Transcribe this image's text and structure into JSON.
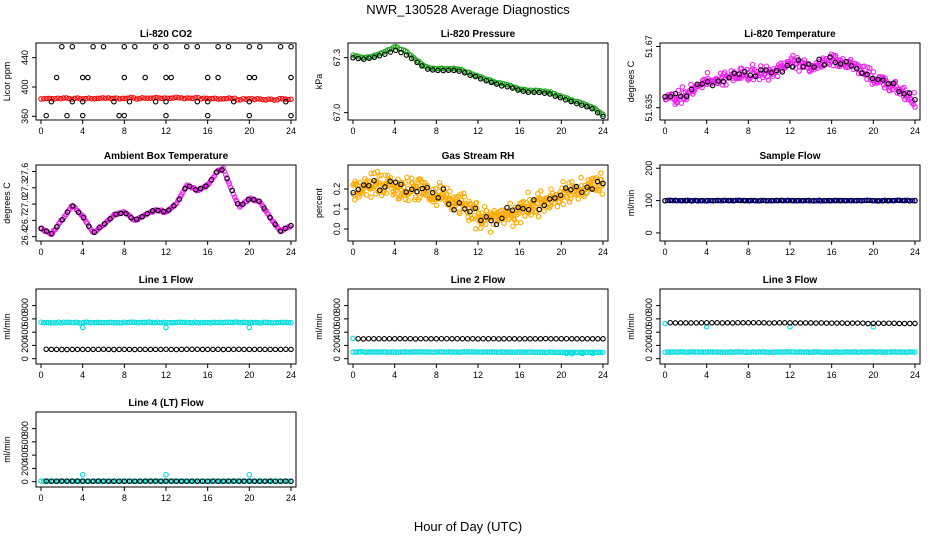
{
  "figure": {
    "title": "NWR_130528  Average Diagnostics",
    "xlabel": "Hour of Day (UTC)"
  },
  "chart_data": [
    {
      "id": "co2",
      "type": "scatter",
      "title": "Li-820 CO2",
      "ylabel": "Licor ppm",
      "xlim": [
        0,
        24
      ],
      "ylim": [
        355,
        460
      ],
      "xticks": [
        0,
        4,
        8,
        12,
        16,
        20,
        24
      ],
      "yticks": [
        360,
        400,
        440
      ],
      "series": [
        {
          "style": "band",
          "color": "#ff0000",
          "shape": "circle",
          "x_start": 0,
          "x_end": 24,
          "count": 90,
          "y_start": 384,
          "y_mid": 385,
          "y_end": 383,
          "jitter": 1.5
        },
        {
          "style": "scatter",
          "color": "#000000",
          "shape": "circle",
          "x": [
            2,
            3,
            5,
            6,
            8,
            9,
            11,
            12,
            14,
            15,
            17,
            18,
            20,
            21,
            23,
            24,
            1.5,
            4,
            4.5,
            8,
            10,
            12,
            12.5,
            16,
            17,
            20,
            20.5,
            24,
            1,
            3,
            4,
            7,
            8.5,
            11,
            12,
            15,
            16,
            18.5,
            20,
            23.5,
            0.5,
            2.5,
            4,
            7.5,
            8,
            12,
            16,
            20,
            24
          ],
          "y": [
            455,
            455,
            455,
            455,
            455,
            455,
            455,
            455,
            455,
            455,
            455,
            455,
            455,
            455,
            455,
            455,
            413,
            413,
            413,
            413,
            413,
            413,
            413,
            413,
            413,
            413,
            413,
            413,
            380,
            380,
            380,
            380,
            380,
            380,
            380,
            380,
            380,
            380,
            380,
            380,
            361,
            361,
            361,
            361,
            361,
            361,
            361,
            361,
            361
          ]
        }
      ]
    },
    {
      "id": "pressure",
      "type": "scatter",
      "title": "Li-820 Pressure",
      "ylabel": "kPa",
      "xlim": [
        0,
        24
      ],
      "ylim": [
        66.96,
        67.38
      ],
      "xticks": [
        0,
        4,
        8,
        12,
        16,
        20,
        24
      ],
      "yticks": [
        67.0,
        67.3
      ],
      "series": [
        {
          "style": "line-band",
          "color": "#22aa22",
          "shape": "circle",
          "count": 130,
          "jitter": 0.005,
          "path_x": [
            0,
            1,
            2,
            3,
            4,
            5,
            6,
            7,
            8,
            9,
            10,
            11,
            12,
            13,
            14,
            15,
            16,
            17,
            18,
            19,
            20,
            21,
            22,
            23,
            24
          ],
          "path_y": [
            67.31,
            67.3,
            67.31,
            67.33,
            67.36,
            67.34,
            67.29,
            67.25,
            67.24,
            67.24,
            67.24,
            67.22,
            67.2,
            67.18,
            67.16,
            67.15,
            67.13,
            67.12,
            67.12,
            67.11,
            67.09,
            67.07,
            67.05,
            67.03,
            66.99
          ]
        },
        {
          "style": "line-band",
          "color": "#000000",
          "shape": "circle",
          "count": 48,
          "jitter": 0.003,
          "path_x": [
            0,
            1,
            2,
            3,
            4,
            5,
            6,
            7,
            8,
            9,
            10,
            11,
            12,
            13,
            14,
            15,
            16,
            17,
            18,
            19,
            20,
            21,
            22,
            23,
            24
          ],
          "path_y": [
            67.3,
            67.29,
            67.3,
            67.32,
            67.34,
            67.32,
            67.28,
            67.24,
            67.23,
            67.23,
            67.23,
            67.21,
            67.19,
            67.17,
            67.15,
            67.14,
            67.12,
            67.11,
            67.11,
            67.1,
            67.08,
            67.06,
            67.04,
            67.02,
            66.98
          ]
        }
      ]
    },
    {
      "id": "licor-temp",
      "type": "scatter",
      "title": "Li-820 Temperature",
      "ylabel": "degrees C",
      "xlim": [
        0,
        24
      ],
      "ylim": [
        51.628,
        51.672
      ],
      "xticks": [
        0,
        4,
        8,
        12,
        16,
        20,
        24
      ],
      "yticks": [
        51.635,
        51.67
      ],
      "series": [
        {
          "style": "line-band",
          "color": "#ee22ee",
          "shape": "circle",
          "count": 320,
          "jitter": 0.006,
          "path_x": [
            0,
            2,
            4,
            6,
            8,
            10,
            12,
            14,
            16,
            18,
            20,
            22,
            24
          ],
          "path_y": [
            51.64,
            51.642,
            51.65,
            51.652,
            51.655,
            51.655,
            51.66,
            51.658,
            51.662,
            51.66,
            51.652,
            51.647,
            51.64
          ]
        },
        {
          "style": "line-band",
          "color": "#000000",
          "shape": "circle",
          "count": 48,
          "jitter": 0.004,
          "path_x": [
            0,
            2,
            4,
            6,
            8,
            10,
            12,
            14,
            16,
            18,
            20,
            22,
            24
          ],
          "path_y": [
            51.64,
            51.642,
            51.65,
            51.652,
            51.655,
            51.655,
            51.66,
            51.658,
            51.662,
            51.66,
            51.652,
            51.647,
            51.64
          ]
        }
      ]
    },
    {
      "id": "box-temp",
      "type": "scatter",
      "title": "Ambient Box Temperature",
      "ylabel": "degrees C",
      "xlim": [
        0,
        24
      ],
      "ylim": [
        26.32,
        27.72
      ],
      "xticks": [
        0,
        4,
        8,
        12,
        16,
        20,
        24
      ],
      "yticks": [
        26.4,
        26.7,
        27.0,
        27.3,
        27.6
      ],
      "series": [
        {
          "style": "line-band",
          "color": "#ee22ee",
          "shape": "circle",
          "count": 200,
          "jitter": 0.025,
          "path_x": [
            0,
            1,
            2,
            3,
            4,
            5,
            6,
            7,
            8,
            9,
            10,
            11,
            12,
            13,
            14,
            15,
            16,
            17,
            17.5,
            18,
            19,
            20,
            21,
            22,
            23,
            23.5,
            24
          ],
          "path_y": [
            26.55,
            26.45,
            26.7,
            26.98,
            26.78,
            26.47,
            26.62,
            26.8,
            26.85,
            26.7,
            26.8,
            26.9,
            26.85,
            27.0,
            27.35,
            27.25,
            27.35,
            27.62,
            27.65,
            27.4,
            26.95,
            27.1,
            27.05,
            26.75,
            26.5,
            26.55,
            26.6
          ]
        },
        {
          "style": "line-band",
          "color": "#000000",
          "shape": "circle",
          "count": 48,
          "jitter": 0.015,
          "path_x": [
            0,
            1,
            2,
            3,
            4,
            5,
            6,
            7,
            8,
            9,
            10,
            11,
            12,
            13,
            14,
            15,
            16,
            17,
            17.5,
            18,
            19,
            20,
            21,
            22,
            23,
            23.5,
            24
          ],
          "path_y": [
            26.55,
            26.45,
            26.7,
            26.98,
            26.78,
            26.47,
            26.62,
            26.8,
            26.85,
            26.7,
            26.8,
            26.9,
            26.85,
            27.0,
            27.35,
            27.25,
            27.35,
            27.62,
            27.65,
            27.4,
            26.95,
            27.1,
            27.05,
            26.75,
            26.5,
            26.55,
            26.6
          ]
        }
      ]
    },
    {
      "id": "gas-rh",
      "type": "scatter",
      "title": "Gas Stream RH",
      "ylabel": "percent",
      "xlim": [
        0,
        24
      ],
      "ylim": [
        -0.06,
        0.32
      ],
      "xticks": [
        0,
        4,
        8,
        12,
        16,
        20,
        24
      ],
      "yticks": [
        0.0,
        0.1,
        0.2
      ],
      "series": [
        {
          "style": "line-band",
          "color": "#ffaa00",
          "shape": "circle",
          "count": 420,
          "jitter": 0.09,
          "path_x": [
            0,
            2,
            4,
            6,
            8,
            10,
            12,
            13,
            14,
            16,
            18,
            20,
            22,
            24
          ],
          "path_y": [
            0.19,
            0.22,
            0.21,
            0.2,
            0.17,
            0.13,
            0.07,
            0.05,
            0.06,
            0.1,
            0.13,
            0.17,
            0.2,
            0.22
          ]
        },
        {
          "style": "line-band",
          "color": "#000000",
          "shape": "circle",
          "count": 48,
          "jitter": 0.05,
          "path_x": [
            0,
            2,
            4,
            6,
            8,
            10,
            12,
            13,
            14,
            16,
            18,
            20,
            22,
            24
          ],
          "path_y": [
            0.19,
            0.22,
            0.21,
            0.2,
            0.17,
            0.13,
            0.07,
            0.05,
            0.06,
            0.1,
            0.13,
            0.17,
            0.2,
            0.22
          ]
        }
      ]
    },
    {
      "id": "sample-flow",
      "type": "scatter",
      "title": "Sample Flow",
      "ylabel": "ml/min",
      "xlim": [
        0,
        24
      ],
      "ylim": [
        -25,
        210
      ],
      "xticks": [
        0,
        4,
        8,
        12,
        16,
        20,
        24
      ],
      "yticks": [
        0,
        100,
        200
      ],
      "series": [
        {
          "style": "band",
          "color": "#0000cc",
          "shape": "circle",
          "x_start": 0,
          "x_end": 24,
          "count": 100,
          "y_start": 100,
          "y_mid": 100,
          "y_end": 100,
          "jitter": 1.5
        },
        {
          "style": "band",
          "color": "#000000",
          "shape": "circle",
          "x_start": 0,
          "x_end": 24,
          "count": 48,
          "y_start": 100,
          "y_mid": 100,
          "y_end": 100,
          "jitter": 1.5
        }
      ]
    },
    {
      "id": "line1",
      "type": "scatter",
      "title": "Line 1 Flow",
      "ylabel": "ml/min",
      "xlim": [
        0,
        24
      ],
      "ylim": [
        -80,
        1050
      ],
      "xticks": [
        0,
        4,
        8,
        12,
        16,
        20,
        24
      ],
      "yticks": [
        0,
        200,
        400,
        600,
        800
      ],
      "series": [
        {
          "style": "band",
          "color": "#00dddd",
          "shape": "circle",
          "x_start": 0,
          "x_end": 24,
          "count": 100,
          "y_start": 545,
          "y_mid": 545,
          "y_end": 545,
          "jitter": 10
        },
        {
          "style": "scatter",
          "color": "#00dddd",
          "shape": "circle",
          "x": [
            4,
            12,
            20
          ],
          "y": [
            470,
            470,
            470
          ]
        },
        {
          "style": "band",
          "color": "#000000",
          "shape": "circle",
          "x_start": 0.5,
          "x_end": 24,
          "count": 48,
          "y_start": 140,
          "y_mid": 140,
          "y_end": 140,
          "jitter": 2
        }
      ]
    },
    {
      "id": "line2",
      "type": "scatter",
      "title": "Line 2 Flow",
      "ylabel": "ml/min",
      "xlim": [
        0,
        24
      ],
      "ylim": [
        -80,
        1050
      ],
      "xticks": [
        0,
        4,
        8,
        12,
        16,
        20,
        24
      ],
      "yticks": [
        0,
        200,
        400,
        600,
        800
      ],
      "series": [
        {
          "style": "band",
          "color": "#00dddd",
          "shape": "circle",
          "x_start": 0,
          "x_end": 24,
          "count": 100,
          "y_start": 100,
          "y_mid": 100,
          "y_end": 95,
          "jitter": 5
        },
        {
          "style": "scatter",
          "color": "#00dddd",
          "shape": "circle",
          "x": [
            0,
            20.5,
            21,
            22,
            23
          ],
          "y": [
            305,
            80,
            75,
            78,
            80
          ]
        },
        {
          "style": "band",
          "color": "#000000",
          "shape": "circle",
          "x_start": 0.5,
          "x_end": 24,
          "count": 48,
          "y_start": 300,
          "y_mid": 300,
          "y_end": 300,
          "jitter": 3
        }
      ]
    },
    {
      "id": "line3",
      "type": "scatter",
      "title": "Line 3 Flow",
      "ylabel": "ml/min",
      "xlim": [
        0,
        24
      ],
      "ylim": [
        -80,
        1050
      ],
      "xticks": [
        0,
        4,
        8,
        12,
        16,
        20,
        24
      ],
      "yticks": [
        0,
        200,
        400,
        600,
        800
      ],
      "series": [
        {
          "style": "band",
          "color": "#00dddd",
          "shape": "circle",
          "x_start": 0,
          "x_end": 24,
          "count": 100,
          "y_start": 100,
          "y_mid": 100,
          "y_end": 100,
          "jitter": 5
        },
        {
          "style": "scatter",
          "color": "#00dddd",
          "shape": "circle",
          "x": [
            0,
            4,
            12,
            20
          ],
          "y": [
            530,
            480,
            480,
            480
          ]
        },
        {
          "style": "band",
          "color": "#000000",
          "shape": "circle",
          "x_start": 0.5,
          "x_end": 24,
          "count": 48,
          "y_start": 540,
          "y_mid": 540,
          "y_end": 530,
          "jitter": 4
        }
      ]
    },
    {
      "id": "line4",
      "type": "scatter",
      "title": "Line 4 (LT) Flow",
      "ylabel": "ml/min",
      "xlim": [
        0,
        24
      ],
      "ylim": [
        -80,
        1050
      ],
      "xticks": [
        0,
        4,
        8,
        12,
        16,
        20,
        24
      ],
      "yticks": [
        0,
        200,
        400,
        600,
        800
      ],
      "series": [
        {
          "style": "band",
          "color": "#00dddd",
          "shape": "circle",
          "x_start": 0,
          "x_end": 24,
          "count": 100,
          "y_start": 8,
          "y_mid": 8,
          "y_end": 8,
          "jitter": 2
        },
        {
          "style": "scatter",
          "color": "#00dddd",
          "shape": "circle",
          "x": [
            4,
            12,
            20
          ],
          "y": [
            105,
            105,
            105
          ]
        },
        {
          "style": "band",
          "color": "#000000",
          "shape": "circle",
          "x_start": 0.5,
          "x_end": 24,
          "count": 48,
          "y_start": 8,
          "y_mid": 8,
          "y_end": 8,
          "jitter": 2
        }
      ]
    }
  ]
}
